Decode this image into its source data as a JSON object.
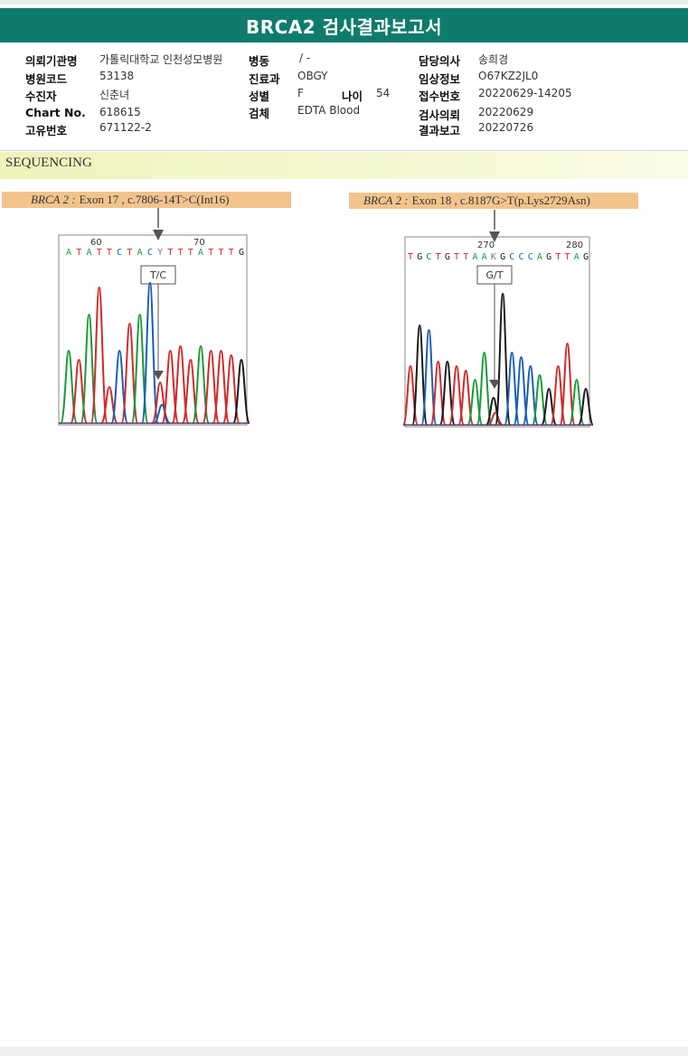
{
  "report": {
    "title": "BRCA2 검사결과보고서",
    "fields": [
      {
        "label": "의뢰기관명",
        "value": "가톨릭대학교 인천성모병원"
      },
      {
        "label": "병원코드",
        "value": "53138"
      },
      {
        "label": "수진자",
        "value": "신춘녀"
      },
      {
        "label": "Chart No.",
        "value": "618615"
      },
      {
        "label": "고유번호",
        "value": "671122-2"
      },
      {
        "label": "병동",
        "value": "/ -"
      },
      {
        "label": "진료과",
        "value": "OBGY"
      },
      {
        "label": "성별",
        "value": "F"
      },
      {
        "label": "나이",
        "value": "54"
      },
      {
        "label": "검체",
        "value": "EDTA Blood"
      },
      {
        "label": "담당의사",
        "value": "송희경"
      },
      {
        "label": "임상정보",
        "value": "O67KZ2JL0"
      },
      {
        "label": "접수번호",
        "value": "20220629-14205"
      },
      {
        "label": "검사의뢰",
        "value": "20220629"
      },
      {
        "label": "결과보고",
        "value": "20220726"
      }
    ]
  },
  "sequencing": {
    "title": "SEQUENCING",
    "panels": [
      {
        "gene": "BRCA 2 :",
        "desc": "Exon 17 , c.7806-14T>C(Int16)",
        "positions": [
          "60",
          "70"
        ],
        "bases": "ATATTCTACYTTTATTTG",
        "call": "T/C"
      },
      {
        "gene": "BRCA 2 :",
        "desc": "Exon 18 , c.8187G>T(p.Lys2729Asn)",
        "positions": [
          "270",
          "280"
        ],
        "bases": "TGCTGTTAAKGCCCAGTTAG",
        "call": "G/T"
      }
    ]
  },
  "colors": {
    "banner": "#0f7b6c",
    "A": "#1a9a3a",
    "T": "#d12a2a",
    "C": "#1a5fb4",
    "G": "#1a1a1a"
  }
}
